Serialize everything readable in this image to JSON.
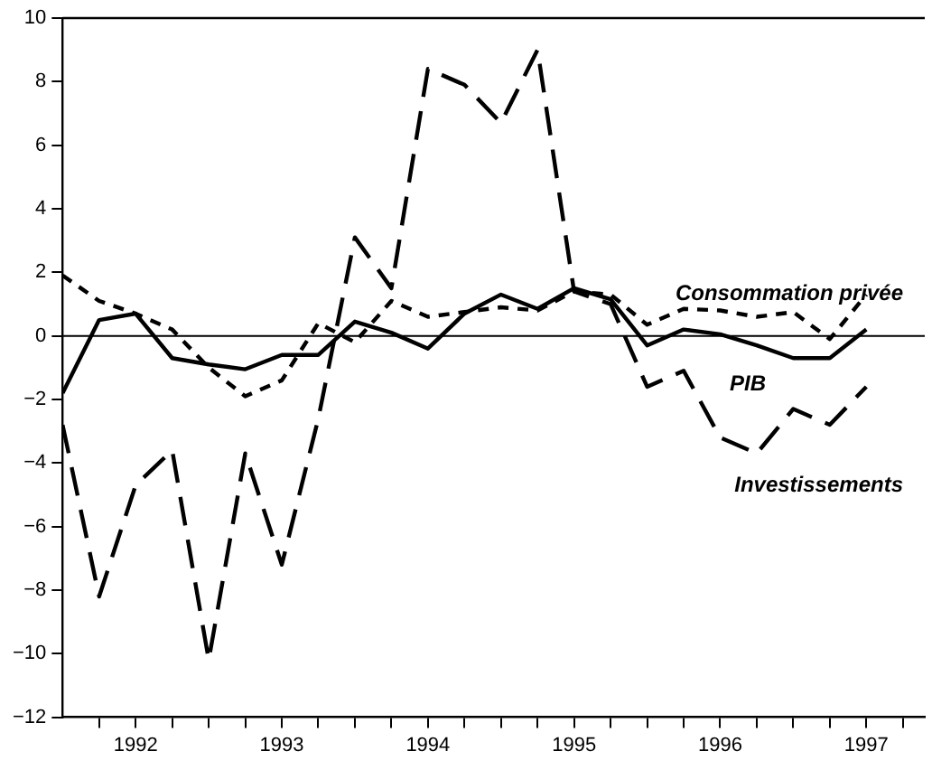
{
  "chart_data": {
    "type": "line",
    "x": [
      1992,
      1992.25,
      1992.5,
      1992.75,
      1993,
      1993.25,
      1993.5,
      1993.75,
      1994,
      1994.25,
      1994.5,
      1994.75,
      1995,
      1995.25,
      1995.5,
      1995.75,
      1996,
      1996.25,
      1996.5,
      1996.75,
      1997,
      1997.25,
      1997.5
    ],
    "series": [
      {
        "name": "Investissements",
        "color": "#000000",
        "line_style": "dashed",
        "values": [
          -2.8,
          -8.2,
          -4.7,
          -3.6,
          -10.2,
          -3.7,
          -7.2,
          -2.6,
          3.1,
          1.5,
          8.4,
          7.9,
          6.7,
          9.0,
          1.4,
          1.0,
          -1.6,
          -1.1,
          -3.2,
          -3.7,
          -2.3,
          -2.8,
          -1.6
        ]
      },
      {
        "name": "PIB",
        "color": "#000000",
        "line_style": "solid",
        "values": [
          -1.8,
          0.5,
          0.7,
          -0.7,
          -0.9,
          -1.05,
          -0.6,
          -0.6,
          0.45,
          0.1,
          -0.4,
          0.7,
          1.3,
          0.85,
          1.5,
          1.15,
          -0.3,
          0.2,
          0.05,
          -0.3,
          -0.7,
          -0.7,
          0.2
        ]
      },
      {
        "name": "Consommation privée",
        "color": "#000000",
        "line_style": "dashed",
        "values": [
          1.9,
          1.1,
          0.7,
          0.2,
          -1.0,
          -1.9,
          -1.4,
          0.4,
          -0.2,
          1.1,
          0.6,
          0.75,
          0.9,
          0.8,
          1.4,
          1.3,
          0.35,
          0.85,
          0.8,
          0.6,
          0.75,
          -0.1,
          1.3
        ]
      }
    ],
    "xlim": [
      1992,
      1997.9
    ],
    "xticks": [
      {
        "value": 1992.25,
        "label": null
      },
      {
        "value": 1992.5,
        "label": "1992"
      },
      {
        "value": 1992.75,
        "label": null
      },
      {
        "value": 1993,
        "label": null
      },
      {
        "value": 1993.25,
        "label": null
      },
      {
        "value": 1993.5,
        "label": "1993"
      },
      {
        "value": 1993.75,
        "label": null
      },
      {
        "value": 1994,
        "label": null
      },
      {
        "value": 1994.25,
        "label": null
      },
      {
        "value": 1994.5,
        "label": "1994"
      },
      {
        "value": 1994.75,
        "label": null
      },
      {
        "value": 1995,
        "label": null
      },
      {
        "value": 1995.25,
        "label": null
      },
      {
        "value": 1995.5,
        "label": "1995"
      },
      {
        "value": 1995.75,
        "label": null
      },
      {
        "value": 1996,
        "label": null
      },
      {
        "value": 1996.25,
        "label": null
      },
      {
        "value": 1996.5,
        "label": "1996"
      },
      {
        "value": 1996.75,
        "label": null
      },
      {
        "value": 1997,
        "label": null
      },
      {
        "value": 1997.25,
        "label": null
      },
      {
        "value": 1997.5,
        "label": "1997"
      },
      {
        "value": 1997.75,
        "label": null
      }
    ],
    "ylim": [
      -12,
      10
    ],
    "yticks": [
      -12,
      -10,
      -8,
      -6,
      -4,
      -2,
      0,
      2,
      4,
      6,
      8,
      10
    ],
    "ref_lines": [
      {
        "axis": "y",
        "value": 0
      }
    ],
    "grid": false,
    "legend": false,
    "marker": "none"
  }
}
